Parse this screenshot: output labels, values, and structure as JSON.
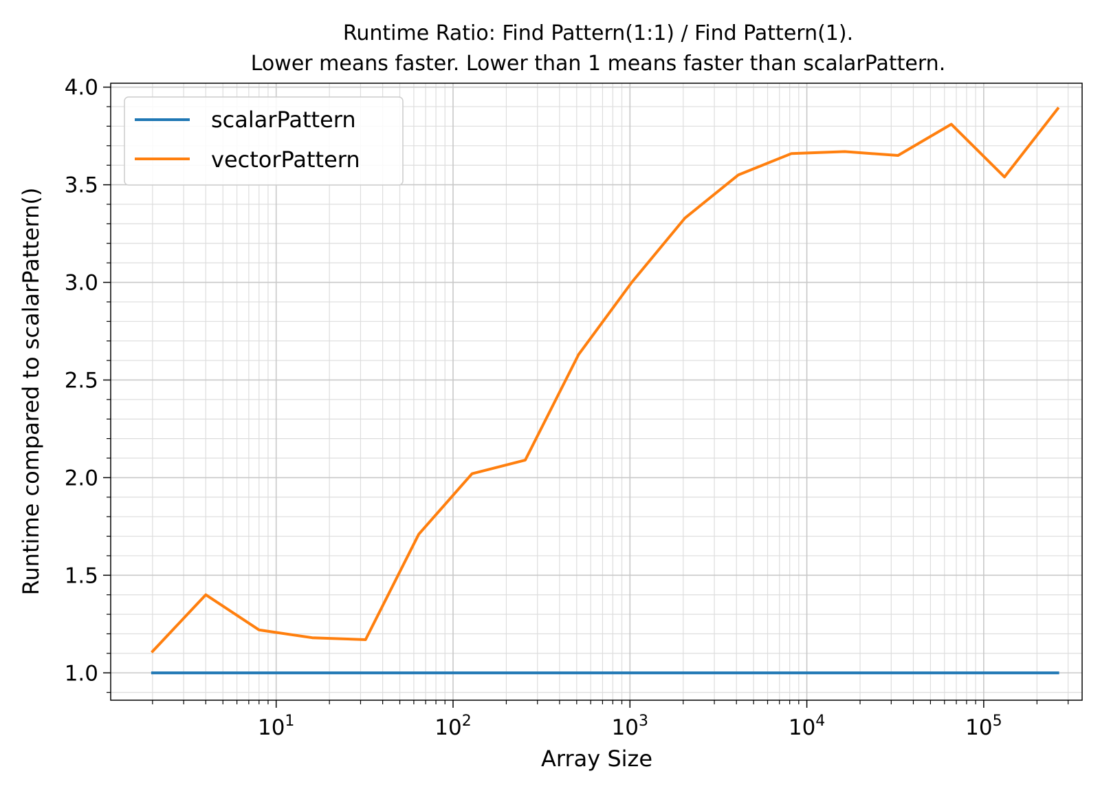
{
  "chart_data": {
    "type": "line",
    "title_line1": "Runtime Ratio: Find Pattern(1:1) / Find Pattern(1).",
    "title_line2": "Lower means faster. Lower than 1 means faster than scalarPattern.",
    "xlabel": "Array Size",
    "ylabel": "Runtime compared to scalarPattern()",
    "xscale": "log",
    "xlim": [
      1.16,
      360000
    ],
    "ylim": [
      0.86,
      4.02
    ],
    "grid": true,
    "legend_position": "top-left",
    "x_ticks": [
      {
        "value": 10,
        "base": "10",
        "exp": "1"
      },
      {
        "value": 100,
        "base": "10",
        "exp": "2"
      },
      {
        "value": 1000,
        "base": "10",
        "exp": "3"
      },
      {
        "value": 10000,
        "base": "10",
        "exp": "4"
      },
      {
        "value": 100000,
        "base": "10",
        "exp": "5"
      }
    ],
    "y_ticks": [
      "1.0",
      "1.5",
      "2.0",
      "2.5",
      "3.0",
      "3.5",
      "4.0"
    ],
    "x": [
      2,
      4,
      8,
      16,
      32,
      64,
      128,
      256,
      512,
      1024,
      2048,
      4096,
      8192,
      16384,
      32768,
      65536,
      131072,
      262144
    ],
    "series": [
      {
        "name": "scalarPattern",
        "color": "#1f77b4",
        "values": [
          1,
          1,
          1,
          1,
          1,
          1,
          1,
          1,
          1,
          1,
          1,
          1,
          1,
          1,
          1,
          1,
          1,
          1
        ]
      },
      {
        "name": "vectorPattern",
        "color": "#ff7f0e",
        "values": [
          1.11,
          1.4,
          1.22,
          1.18,
          1.17,
          1.71,
          2.02,
          2.09,
          2.63,
          3.0,
          3.33,
          3.55,
          3.66,
          3.67,
          3.65,
          3.81,
          3.54,
          3.89
        ]
      }
    ]
  }
}
